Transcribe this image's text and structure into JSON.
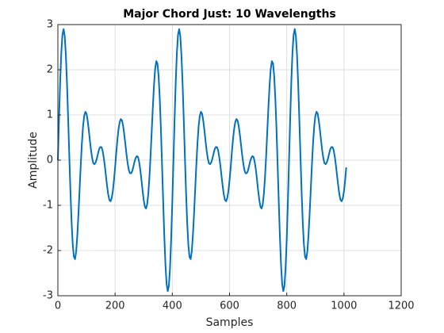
{
  "chart_data": {
    "type": "line",
    "title": "Major Chord Just: 10 Wavelengths",
    "xlabel": "Samples",
    "ylabel": "Amplitude",
    "color": "#0072bd",
    "grid": true,
    "xlim": [
      0,
      1200
    ],
    "xticks": [
      0,
      200,
      400,
      600,
      800,
      1000,
      1200
    ],
    "ylim": [
      -3,
      3
    ],
    "yticks": [
      -3,
      -2,
      -1,
      0,
      1,
      2,
      3
    ],
    "x": [
      0,
      4,
      8,
      12,
      16,
      20,
      24,
      28,
      32,
      36,
      40,
      44,
      48,
      52,
      56,
      60,
      64,
      68,
      72,
      76,
      80,
      84,
      88,
      92,
      96,
      100,
      104,
      108,
      112,
      116,
      120,
      124,
      128,
      132,
      136,
      140,
      144,
      148,
      152,
      156,
      160,
      164,
      168,
      172,
      176,
      180,
      184,
      188,
      192,
      196,
      200,
      204,
      208,
      212,
      216,
      220,
      224,
      228,
      232,
      236,
      240,
      244,
      248,
      252,
      256,
      260,
      264,
      268,
      272,
      276,
      280,
      284,
      288,
      292,
      296,
      300,
      304,
      308,
      312,
      316,
      320,
      324,
      328,
      332,
      336,
      340,
      344,
      348,
      352,
      356,
      360,
      364,
      368,
      372,
      376,
      380,
      384,
      388,
      392,
      396,
      400,
      404,
      408,
      412,
      416,
      420,
      424,
      428,
      432,
      436,
      440,
      444,
      448,
      452,
      456,
      460,
      464,
      468,
      472,
      476,
      480,
      484,
      488,
      492,
      496,
      500,
      504,
      508,
      512,
      516,
      520,
      524,
      528,
      532,
      536,
      540,
      544,
      548,
      552,
      556,
      560,
      564,
      568,
      572,
      576,
      580,
      584,
      588,
      592,
      596,
      600,
      604,
      608,
      612,
      616,
      620,
      624,
      628,
      632,
      636,
      640,
      644,
      648,
      652,
      656,
      660,
      664,
      668,
      672,
      676,
      680,
      684,
      688,
      692,
      696,
      700,
      704,
      708,
      712,
      716,
      720,
      724,
      728,
      732,
      736,
      740,
      744,
      748,
      752,
      756,
      760,
      764,
      768,
      772,
      776,
      780,
      784,
      788,
      792,
      796,
      800,
      804,
      808,
      812,
      816,
      820,
      824,
      828,
      832,
      836,
      840,
      844,
      848,
      852,
      856,
      860,
      864,
      868,
      872,
      876,
      880,
      884,
      888,
      892,
      896,
      900,
      904,
      908,
      912,
      916,
      920,
      924,
      928,
      932,
      936,
      940,
      944,
      948,
      952,
      956,
      960,
      964,
      968,
      972,
      976,
      980,
      984,
      988,
      992,
      996,
      1000,
      1004,
      1008
    ],
    "values": [
      0,
      0.92,
      1.74,
      2.38,
      2.78,
      2.9,
      2.74,
      2.31,
      1.68,
      0.9,
      0.08,
      -0.71,
      -1.38,
      -1.87,
      -2.14,
      -2.19,
      -2.02,
      -1.66,
      -1.18,
      -0.64,
      -0.1,
      0.38,
      0.75,
      0.98,
      1.07,
      1.03,
      0.88,
      0.67,
      0.43,
      0.21,
      0.04,
      -0.07,
      -0.09,
      -0.05,
      0.03,
      0.14,
      0.24,
      0.29,
      0.29,
      0.22,
      0.07,
      -0.12,
      -0.35,
      -0.57,
      -0.76,
      -0.88,
      -0.91,
      -0.84,
      -0.69,
      -0.45,
      -0.16,
      0.16,
      0.45,
      0.69,
      0.84,
      0.91,
      0.88,
      0.76,
      0.57,
      0.35,
      0.12,
      -0.07,
      -0.22,
      -0.29,
      -0.29,
      -0.24,
      -0.14,
      -0.03,
      0.05,
      0.09,
      0.07,
      -0.04,
      -0.21,
      -0.43,
      -0.67,
      -0.88,
      -1.03,
      -1.07,
      -0.98,
      -0.75,
      -0.38,
      0.1,
      0.64,
      1.18,
      1.66,
      2.02,
      2.19,
      2.14,
      1.87,
      1.38,
      0.71,
      -0.08,
      -0.9,
      -1.68,
      -2.31,
      -2.74,
      -2.9,
      -2.78,
      -2.38,
      -1.74,
      -0.92,
      0,
      0.92,
      1.74,
      2.38,
      2.78,
      2.9,
      2.74,
      2.31,
      1.68,
      0.9,
      0.08,
      -0.71,
      -1.38,
      -1.87,
      -2.14,
      -2.19,
      -2.02,
      -1.66,
      -1.18,
      -0.64,
      -0.1,
      0.38,
      0.75,
      0.98,
      1.07,
      1.03,
      0.88,
      0.67,
      0.43,
      0.21,
      0.04,
      -0.07,
      -0.09,
      -0.05,
      0.03,
      0.14,
      0.24,
      0.29,
      0.29,
      0.22,
      0.07,
      -0.12,
      -0.35,
      -0.57,
      -0.76,
      -0.88,
      -0.91,
      -0.84,
      -0.69,
      -0.45,
      -0.16,
      0.16,
      0.45,
      0.69,
      0.84,
      0.91,
      0.88,
      0.76,
      0.57,
      0.35,
      0.12,
      -0.07,
      -0.22,
      -0.29,
      -0.29,
      -0.24,
      -0.14,
      -0.03,
      0.05,
      0.09,
      0.07,
      -0.04,
      -0.21,
      -0.43,
      -0.67,
      -0.88,
      -1.03,
      -1.07,
      -0.98,
      -0.75,
      -0.38,
      0.1,
      0.64,
      1.18,
      1.66,
      2.02,
      2.19,
      2.14,
      1.87,
      1.38,
      0.71,
      -0.08,
      -0.9,
      -1.68,
      -2.31,
      -2.74,
      -2.9,
      -2.78,
      -2.38,
      -1.74,
      -0.92,
      0,
      0.92,
      1.74,
      2.38,
      2.78,
      2.9,
      2.74,
      2.31,
      1.68,
      0.9,
      0.08,
      -0.71,
      -1.38,
      -1.87,
      -2.14,
      -2.19,
      -2.02,
      -1.66,
      -1.18,
      -0.64,
      -0.1,
      0.38,
      0.75,
      0.98,
      1.07,
      1.03,
      0.88,
      0.67,
      0.43,
      0.21,
      0.04,
      -0.07,
      -0.09,
      -0.05,
      0.03,
      0.14,
      0.24,
      0.29,
      0.29,
      0.22,
      0.07,
      -0.12,
      -0.35,
      -0.57,
      -0.76,
      -0.88,
      -0.91,
      -0.84,
      -0.69,
      -0.45,
      -0.16
    ]
  }
}
